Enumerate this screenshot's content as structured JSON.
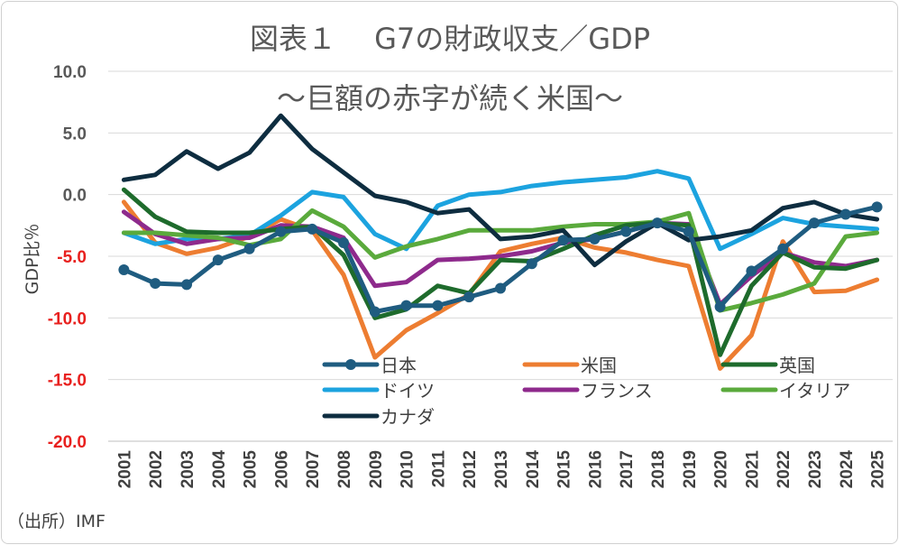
{
  "chart_data": {
    "type": "line",
    "title": "図表１　 G7の財政収支／GDP",
    "subtitle": "～巨額の赤字が続く米国～",
    "ylabel": "GDP比％",
    "ylim": [
      -20,
      10
    ],
    "yticks": [
      "10.0",
      "5.0",
      "0.0",
      "-5.0",
      "-10.0",
      "-15.0",
      "-20.0"
    ],
    "yticks_values": [
      10,
      5,
      0,
      -5,
      -10,
      -15,
      -20
    ],
    "negative_tick_color": "#e8201e",
    "x": [
      "2001",
      "2002",
      "2003",
      "2004",
      "2005",
      "2006",
      "2007",
      "2008",
      "2009",
      "2010",
      "2011",
      "2012",
      "2013",
      "2014",
      "2015",
      "2016",
      "2017",
      "2018",
      "2019",
      "2020",
      "2021",
      "2022",
      "2023",
      "2024",
      "2025"
    ],
    "grid": "horizontal",
    "legend_position": "bottom-center inside plot",
    "series": [
      {
        "name": "日本",
        "color": "#1f5c80",
        "marker": true,
        "values": [
          -6.1,
          -7.2,
          -7.3,
          -5.3,
          -4.4,
          -3.0,
          -2.8,
          -3.9,
          -9.5,
          -9.0,
          -9.0,
          -8.3,
          -7.6,
          -5.6,
          -3.7,
          -3.6,
          -3.0,
          -2.3,
          -3.0,
          -9.1,
          -6.2,
          -4.4,
          -2.3,
          -1.6,
          -1.0
        ]
      },
      {
        "name": "米国",
        "color": "#ed7d31",
        "marker": false,
        "values": [
          -0.6,
          -3.9,
          -4.8,
          -4.3,
          -3.4,
          -2.0,
          -2.9,
          -6.5,
          -13.2,
          -11.0,
          -9.6,
          -8.1,
          -4.6,
          -4.0,
          -3.5,
          -4.3,
          -4.7,
          -5.3,
          -5.8,
          -14.1,
          -11.4,
          -3.8,
          -7.9,
          -7.8,
          -6.9
        ]
      },
      {
        "name": "英国",
        "color": "#1e6b2c",
        "marker": false,
        "values": [
          0.4,
          -1.8,
          -3.0,
          -3.1,
          -3.1,
          -2.8,
          -2.6,
          -4.9,
          -10.0,
          -9.3,
          -7.4,
          -8.0,
          -5.3,
          -5.4,
          -4.4,
          -3.3,
          -2.5,
          -2.3,
          -2.5,
          -13.0,
          -7.4,
          -4.7,
          -5.9,
          -6.0,
          -5.3
        ]
      },
      {
        "name": "ドイツ",
        "color": "#1ca3df",
        "marker": false,
        "values": [
          -3.1,
          -4.0,
          -3.6,
          -3.6,
          -3.3,
          -1.7,
          0.2,
          -0.2,
          -3.2,
          -4.4,
          -0.9,
          0.0,
          0.2,
          0.7,
          1.0,
          1.2,
          1.4,
          1.9,
          1.3,
          -4.4,
          -3.2,
          -1.9,
          -2.4,
          -2.6,
          -2.8
        ]
      },
      {
        "name": "フランス",
        "color": "#8e2a8c",
        "marker": false,
        "values": [
          -1.4,
          -3.2,
          -4.0,
          -3.6,
          -3.5,
          -2.5,
          -2.6,
          -3.5,
          -7.4,
          -7.1,
          -5.3,
          -5.2,
          -5.0,
          -4.6,
          -3.9,
          -3.6,
          -3.0,
          -2.3,
          -2.4,
          -8.9,
          -6.6,
          -4.7,
          -5.5,
          -5.8,
          -5.3
        ]
      },
      {
        "name": "イタリア",
        "color": "#5aaa3c",
        "marker": false,
        "values": [
          -3.1,
          -3.1,
          -3.3,
          -3.5,
          -4.1,
          -3.6,
          -1.3,
          -2.6,
          -5.1,
          -4.2,
          -3.6,
          -2.9,
          -2.9,
          -2.9,
          -2.6,
          -2.4,
          -2.4,
          -2.2,
          -1.5,
          -9.4,
          -8.8,
          -8.1,
          -7.2,
          -3.4,
          -3.1
        ]
      },
      {
        "name": "カナダ",
        "color": "#0e2d40",
        "marker": false,
        "values": [
          1.2,
          1.6,
          3.5,
          2.1,
          3.4,
          6.4,
          3.7,
          1.8,
          -0.1,
          -0.6,
          -1.5,
          -1.2,
          -3.6,
          -3.4,
          -2.9,
          -5.7,
          -3.8,
          -2.3,
          -3.7,
          -3.4,
          -2.9,
          -1.1,
          -0.6,
          -1.6,
          -2.0
        ]
      }
    ],
    "source": "（出所）IMF"
  }
}
